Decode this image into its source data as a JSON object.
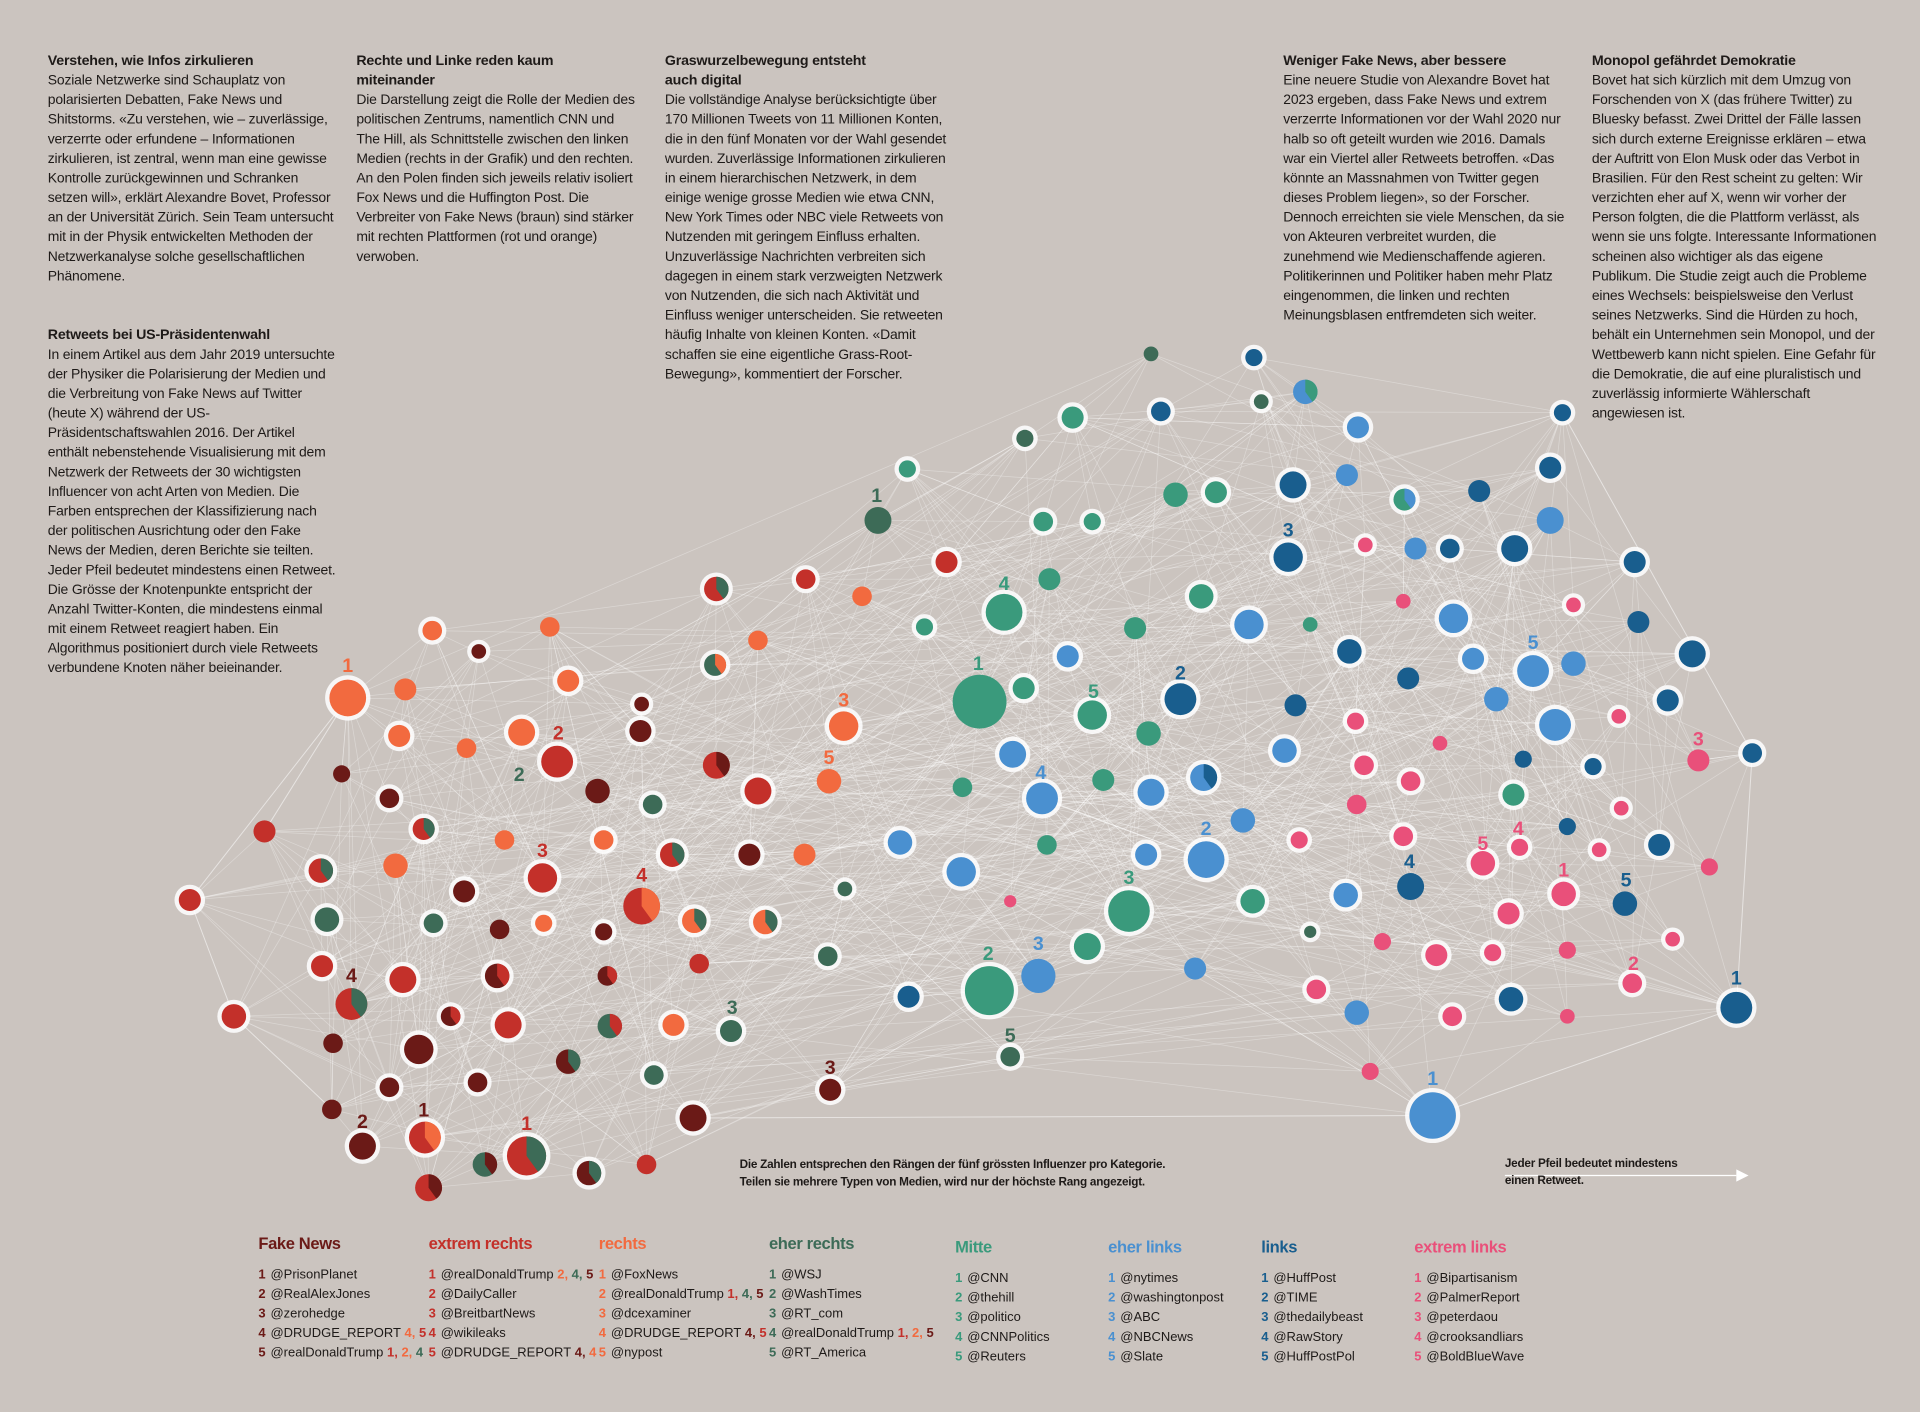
{
  "colors": {
    "background": "#cbc4bf",
    "f": "#6b1a17",
    "xr": "#c3302a",
    "r": "#f26a3f",
    "er": "#3d6b57",
    "m": "#3a9a7c",
    "el": "#4a90d0",
    "l": "#195e8e",
    "xl": "#e9507a",
    "edge": "#ffffff"
  },
  "articles": [
    {
      "title": "Verstehen, wie Infos zirkulieren",
      "body": "Soziale Netzwerke sind Schauplatz von polarisierten Debatten, Fake News und Shitstorms. «Zu verstehen, wie – zuverlässige, verzerrte oder erfundene – Informationen zirkulieren, ist zentral, wenn man eine gewisse Kontrolle zurückgewinnen und Schranken setzen will», erklärt Alexandre Bovet, Professor an der Universität Zürich. Sein Team untersucht mit in der Physik entwickelten Methoden der Netzwerkanalyse solche gesellschaftlichen Phänomene."
    },
    {
      "title": "Retweets bei US-Präsidentenwahl",
      "body": "In einem Artikel aus dem Jahr 2019 untersuchte der Physiker die Polarisierung der Medien und die Verbreitung von Fake News auf Twitter (heute X) während der US-Präsidentschaftswahlen 2016. Der Artikel enthält nebenstehende Visualisierung mit dem Netzwerk der Retweets der 30 wichtigsten Influencer von acht Arten von Medien. Die Farben entsprechen der Klassifizierung nach der politischen Ausrichtung oder den Fake News der Medien, deren Berichte sie teilten. Jeder Pfeil bedeutet mindestens einen Retweet. Die Grösse der Knotenpunkte entspricht der Anzahl Twitter-Konten, die mindestens einmal mit einem Retweet reagiert haben. Ein Algorithmus positioniert durch viele Retweets verbundene Knoten näher beieinander."
    },
    {
      "title": "Rechte und Linke reden kaum miteinander",
      "body": "Die Darstellung zeigt die Rolle der Medien des politischen Zentrums, namentlich CNN und The Hill, als Schnittstelle zwischen den linken Medien (rechts in der Grafik) und den rechten. An den Polen finden sich jeweils relativ isoliert Fox News und die Huffington Post. Die Verbreiter von Fake News (braun) sind stärker mit rechten Plattformen (rot und orange) verwoben."
    },
    {
      "title": "Graswurzelbewegung entsteht auch digital",
      "body": "Die vollständige Analyse berücksichtigte über 170 Millionen Tweets von 11 Millionen Konten, die in den fünf Monaten vor der Wahl gesendet wurden. Zuverlässige Informationen zirkulieren in einem hierarchischen Netzwerk, in dem einige wenige grosse Medien wie etwa CNN, New York Times oder NBC viele Retweets von Nutzenden mit geringem Einfluss erhalten. Unzuverlässige Nachrichten verbreiten sich dagegen in einem stark verzweigten Netzwerk von Nutzenden, die sich nach Aktivität und Einfluss weniger unterscheiden. Sie retweeten häufig Inhalte von kleinen Konten. «Damit schaffen sie eine eigentliche Grass-Root-Bewegung», kommentiert der Forscher."
    },
    {
      "title": "Weniger Fake News, aber bessere",
      "body": "Eine neuere Studie von Alexandre Bovet hat 2023 ergeben, dass Fake News und extrem verzerrte Informationen vor der Wahl 2020 nur halb so oft geteilt wurden wie 2016. Damals war ein Viertel aller Retweets betroffen. «Das könnte an Massnahmen von Twitter gegen dieses Problem liegen», so der Forscher. Dennoch erreichten sie viele Menschen, da sie von Akteuren verbreitet wurden, die zunehmend wie Medienschaffende agieren. Politikerinnen und Politiker haben mehr Platz eingenommen, die linken und rechten Meinungsblasen entfremdeten sich weiter."
    },
    {
      "title": "Monopol gefährdet Demokratie",
      "body": "Bovet hat sich kürzlich mit dem Umzug von Forschenden von X (das frühere Twitter) zu Bluesky befasst. Zwei Drittel der Fälle lassen sich durch externe Ereignisse erklären – etwa der Auftritt von Elon Musk oder das Verbot in Brasilien. Für den Rest scheint zu gelten: Wir verzichten eher auf X, wenn wir vorher der Person folgten, die die Plattform verlässt, als wenn sie uns folgte. Interessante Informationen scheinen also wichtiger als das eigene Publikum. Die Studie zeigt auch die Probleme eines Wechsels: beispielsweise den Verlust seines Netzwerks. Sind die Hürden zu hoch, behält ein Unternehmen sein Monopol, und der Wettbewerb kann nicht spielen. Eine Gefahr für die Demokratie, die auf eine pluralistisch und zuverlässig informierte Wählerschaft angewiesen ist."
    }
  ],
  "notes": {
    "ranks_line1": "Die Zahlen entsprechen den Rängen der fünf grössten Influenzer pro Kategorie.",
    "ranks_line2": "Teilen sie mehrere Typen von Medien, wird nur der höchste Rang angezeigt.",
    "arrow_line1": "Jeder Pfeil bedeutet mindestens",
    "arrow_line2": "einen Retweet."
  },
  "graph_labels": [
    {
      "text": "1",
      "category": "r"
    },
    {
      "text": "2",
      "category": "xr"
    },
    {
      "text": "2",
      "category": "er"
    },
    {
      "text": "3",
      "category": "xr"
    },
    {
      "text": "4",
      "category": "xr"
    },
    {
      "text": "3",
      "category": "r"
    },
    {
      "text": "5",
      "category": "r"
    },
    {
      "text": "4",
      "category": "f"
    },
    {
      "text": "2",
      "category": "f"
    },
    {
      "text": "1",
      "category": "f"
    },
    {
      "text": "1",
      "category": "xr"
    },
    {
      "text": "3",
      "category": "er"
    },
    {
      "text": "3",
      "category": "f"
    },
    {
      "text": "1",
      "category": "er"
    },
    {
      "text": "4",
      "category": "m"
    },
    {
      "text": "1",
      "category": "m"
    },
    {
      "text": "5",
      "category": "m"
    },
    {
      "text": "2",
      "category": "l"
    },
    {
      "text": "4",
      "category": "el"
    },
    {
      "text": "3",
      "category": "m"
    },
    {
      "text": "2",
      "category": "m"
    },
    {
      "text": "3",
      "category": "el"
    },
    {
      "text": "5",
      "category": "er"
    },
    {
      "text": "2",
      "category": "el"
    },
    {
      "text": "3",
      "category": "l"
    },
    {
      "text": "5",
      "category": "el"
    },
    {
      "text": "4",
      "category": "l"
    },
    {
      "text": "5",
      "category": "xl"
    },
    {
      "text": "4",
      "category": "xl"
    },
    {
      "text": "1",
      "category": "xl"
    },
    {
      "text": "5",
      "category": "l"
    },
    {
      "text": "3",
      "category": "xl"
    },
    {
      "text": "2",
      "category": "xl"
    },
    {
      "text": "1",
      "category": "l"
    },
    {
      "text": "1",
      "category": "el"
    }
  ],
  "legend": [
    {
      "key": "f",
      "title": "Fake News",
      "items": [
        {
          "rank": "1",
          "handle": "@PrisonPlanet",
          "extra": []
        },
        {
          "rank": "2",
          "handle": "@RealAlexJones",
          "extra": []
        },
        {
          "rank": "3",
          "handle": "@zerohedge",
          "extra": []
        },
        {
          "rank": "4",
          "handle": "@DRUDGE_REPORT",
          "extra": [
            {
              "n": "4,",
              "c": "r"
            },
            {
              "n": "5",
              "c": "xr"
            }
          ]
        },
        {
          "rank": "5",
          "handle": "@realDonaldTrump",
          "extra": [
            {
              "n": "1,",
              "c": "xr"
            },
            {
              "n": "2,",
              "c": "r"
            },
            {
              "n": "4",
              "c": "er"
            }
          ]
        }
      ]
    },
    {
      "key": "xr",
      "title": "extrem rechts",
      "items": [
        {
          "rank": "1",
          "handle": "@realDonaldTrump",
          "extra": [
            {
              "n": "2,",
              "c": "r"
            },
            {
              "n": "4,",
              "c": "er"
            },
            {
              "n": "5",
              "c": "f"
            }
          ]
        },
        {
          "rank": "2",
          "handle": "@DailyCaller",
          "extra": []
        },
        {
          "rank": "3",
          "handle": "@BreitbartNews",
          "extra": []
        },
        {
          "rank": "4",
          "handle": "@wikileaks",
          "extra": []
        },
        {
          "rank": "5",
          "handle": "@DRUDGE_REPORT",
          "extra": [
            {
              "n": "4,",
              "c": "f"
            },
            {
              "n": "4",
              "c": "r"
            }
          ]
        }
      ]
    },
    {
      "key": "r",
      "title": "rechts",
      "items": [
        {
          "rank": "1",
          "handle": "@FoxNews",
          "extra": []
        },
        {
          "rank": "2",
          "handle": "@realDonaldTrump",
          "extra": [
            {
              "n": "1,",
              "c": "xr"
            },
            {
              "n": "4,",
              "c": "er"
            },
            {
              "n": "5",
              "c": "f"
            }
          ]
        },
        {
          "rank": "3",
          "handle": "@dcexaminer",
          "extra": []
        },
        {
          "rank": "4",
          "handle": "@DRUDGE_REPORT",
          "extra": [
            {
              "n": "4,",
              "c": "f"
            },
            {
              "n": "5",
              "c": "xr"
            }
          ]
        },
        {
          "rank": "5",
          "handle": "@nypost",
          "extra": []
        }
      ]
    },
    {
      "key": "er",
      "title": "eher rechts",
      "items": [
        {
          "rank": "1",
          "handle": "@WSJ",
          "extra": []
        },
        {
          "rank": "2",
          "handle": "@WashTimes",
          "extra": []
        },
        {
          "rank": "3",
          "handle": "@RT_com",
          "extra": []
        },
        {
          "rank": "4",
          "handle": "@realDonaldTrump",
          "extra": [
            {
              "n": "1,",
              "c": "xr"
            },
            {
              "n": "2,",
              "c": "r"
            },
            {
              "n": "5",
              "c": "f"
            }
          ]
        },
        {
          "rank": "5",
          "handle": "@RT_America",
          "extra": []
        }
      ]
    },
    {
      "key": "m",
      "title": "Mitte",
      "items": [
        {
          "rank": "1",
          "handle": "@CNN",
          "extra": []
        },
        {
          "rank": "2",
          "handle": "@thehill",
          "extra": []
        },
        {
          "rank": "3",
          "handle": "@politico",
          "extra": []
        },
        {
          "rank": "4",
          "handle": "@CNNPolitics",
          "extra": []
        },
        {
          "rank": "5",
          "handle": "@Reuters",
          "extra": []
        }
      ]
    },
    {
      "key": "el",
      "title": "eher links",
      "items": [
        {
          "rank": "1",
          "handle": "@nytimes",
          "extra": []
        },
        {
          "rank": "2",
          "handle": "@washingtonpost",
          "extra": []
        },
        {
          "rank": "3",
          "handle": "@ABC",
          "extra": []
        },
        {
          "rank": "4",
          "handle": "@NBCNews",
          "extra": []
        },
        {
          "rank": "5",
          "handle": "@Slate",
          "extra": []
        }
      ]
    },
    {
      "key": "l",
      "title": "links",
      "items": [
        {
          "rank": "1",
          "handle": "@HuffPost",
          "extra": []
        },
        {
          "rank": "2",
          "handle": "@TIME",
          "extra": []
        },
        {
          "rank": "3",
          "handle": "@thedailybeast",
          "extra": []
        },
        {
          "rank": "4",
          "handle": "@RawStory",
          "extra": []
        },
        {
          "rank": "5",
          "handle": "@HuffPostPol",
          "extra": []
        }
      ]
    },
    {
      "key": "xl",
      "title": "extrem links",
      "items": [
        {
          "rank": "1",
          "handle": "@Bipartisanism",
          "extra": []
        },
        {
          "rank": "2",
          "handle": "@PalmerReport",
          "extra": []
        },
        {
          "rank": "3",
          "handle": "@peterdaou",
          "extra": []
        },
        {
          "rank": "4",
          "handle": "@crooksandliars",
          "extra": []
        },
        {
          "rank": "5",
          "handle": "@BoldBlueWave",
          "extra": []
        }
      ]
    }
  ]
}
